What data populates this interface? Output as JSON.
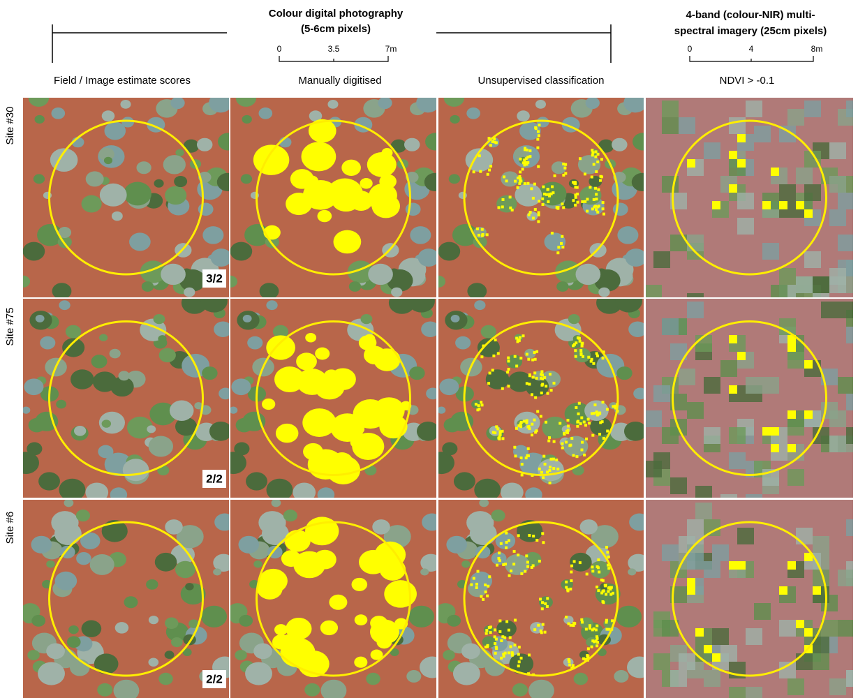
{
  "header": {
    "photo_title": [
      "Colour digital photography",
      "(5-6cm pixels)"
    ],
    "photo_scale": [
      "0",
      "3.5",
      "7m"
    ],
    "multi_title": [
      "4-band (colour-NIR) multi-",
      "spectral imagery (25cm pixels)"
    ],
    "multi_scale": [
      "0",
      "4",
      "8m"
    ]
  },
  "columns": [
    "Field / Image estimate scores",
    "Manually digitised",
    "Unsupervised classification",
    "NDVI > -0.1"
  ],
  "rows": [
    {
      "label": "Site #30",
      "score": "3/2"
    },
    {
      "label": "Site #75",
      "score": "2/2"
    },
    {
      "label": "Site #6",
      "score": "2/2"
    }
  ]
}
